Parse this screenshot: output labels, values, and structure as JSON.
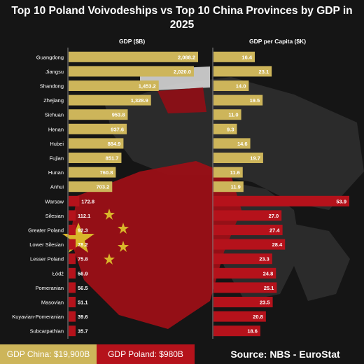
{
  "title": "Top 10 Poland Voivodeships vs Top 10 China Provinces by GDP in 2025",
  "footer": {
    "china_total": "GDP China: $19,900B",
    "poland_total": "GDP Poland: $980B",
    "source": "Source: NBS - EuroStat"
  },
  "colors": {
    "china": "#cdb55a",
    "poland": "#b5121b",
    "background": "#151515"
  },
  "chart_data": [
    {
      "type": "bar",
      "orientation": "horizontal",
      "title": "GDP ($B)",
      "categories": [
        "Guangdong",
        "Jiangsu",
        "Shandong",
        "Zhejiang",
        "Sichuan",
        "Henan",
        "Hubei",
        "Fujian",
        "Hunan",
        "Anhui",
        "Warsaw",
        "Silesian",
        "Greater Poland",
        "Lower Silesian",
        "Lesser Poland",
        "Łódź",
        "Pomeranian",
        "Masovian",
        "Kuyavian-Pomeranian",
        "Subcarpathian"
      ],
      "values": [
        2088.2,
        2020.0,
        1453.2,
        1328.9,
        953.8,
        937.6,
        884.9,
        851.7,
        760.8,
        703.2,
        172.8,
        112.1,
        92.3,
        78.2,
        75.8,
        56.9,
        56.5,
        51.1,
        39.6,
        35.7
      ],
      "labels": [
        "2,088.2",
        "2,020.0",
        "1,453.2",
        "1,328.9",
        "953.8",
        "937.6",
        "884.9",
        "851.7",
        "760.8",
        "703.2",
        "172.8",
        "112.1",
        "92.3",
        "78.2",
        "75.8",
        "56.9",
        "56.5",
        "51.1",
        "39.6",
        "35.7"
      ],
      "groups": [
        "China",
        "China",
        "China",
        "China",
        "China",
        "China",
        "China",
        "China",
        "China",
        "China",
        "Poland",
        "Poland",
        "Poland",
        "Poland",
        "Poland",
        "Poland",
        "Poland",
        "Poland",
        "Poland",
        "Poland"
      ]
    },
    {
      "type": "bar",
      "orientation": "horizontal",
      "title": "GDP per Capita ($K)",
      "categories": [
        "Guangdong",
        "Jiangsu",
        "Shandong",
        "Zhejiang",
        "Sichuan",
        "Henan",
        "Hubei",
        "Fujian",
        "Hunan",
        "Anhui",
        "Warsaw",
        "Silesian",
        "Greater Poland",
        "Lower Silesian",
        "Lesser Poland",
        "Łódź",
        "Pomeranian",
        "Masovian",
        "Kuyavian-Pomeranian",
        "Subcarpathian"
      ],
      "values": [
        16.4,
        23.1,
        14.0,
        19.5,
        11.0,
        9.3,
        14.6,
        19.7,
        11.6,
        11.9,
        53.9,
        27.0,
        27.4,
        28.4,
        23.3,
        24.8,
        25.1,
        23.5,
        20.8,
        18.6
      ],
      "labels": [
        "16.4",
        "23.1",
        "14.0",
        "19.5",
        "11.0",
        "9.3",
        "14.6",
        "19.7",
        "11.6",
        "11.9",
        "53.9",
        "27.0",
        "27.4",
        "28.4",
        "23.3",
        "24.8",
        "25.1",
        "23.5",
        "20.8",
        "18.6"
      ]
    }
  ]
}
